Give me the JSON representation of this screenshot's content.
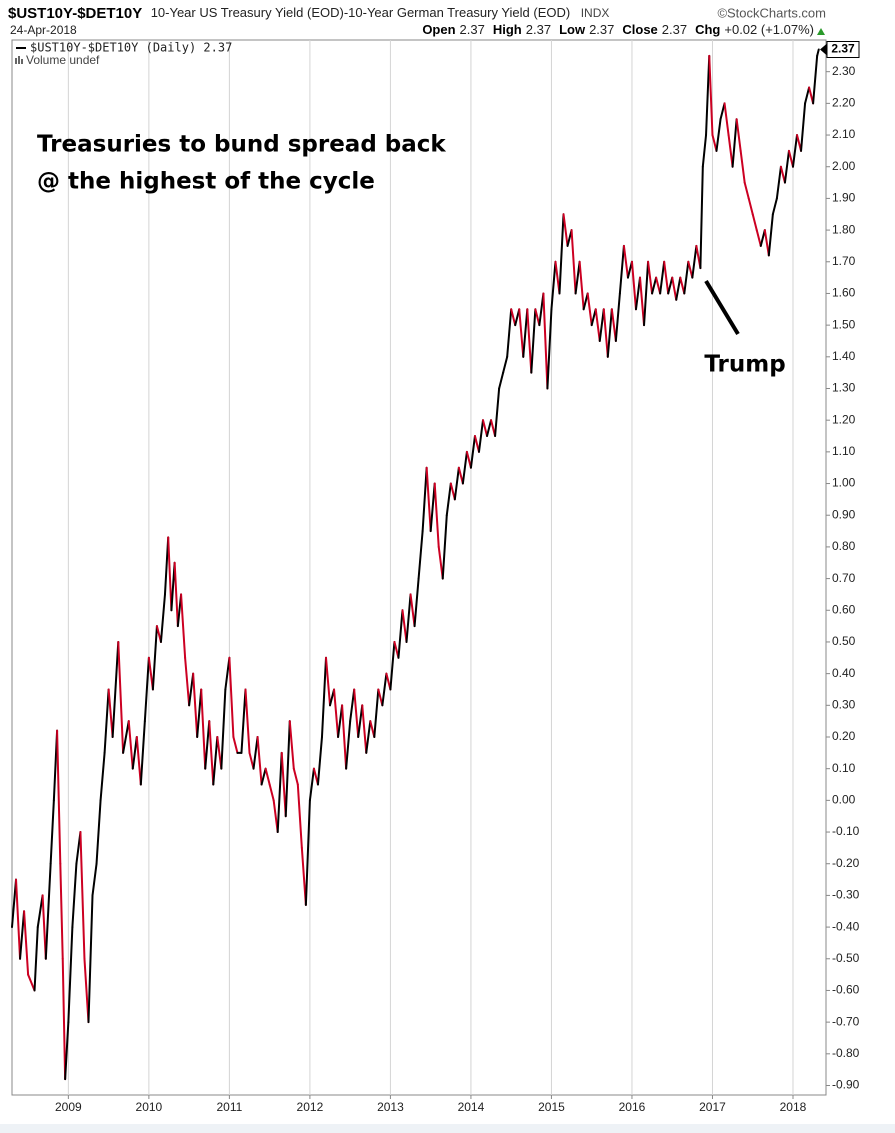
{
  "chart_data": {
    "type": "line",
    "symbol": "$UST10Y-$DET10Y",
    "title": "10-Year US Treasury Yield (EOD)-10-Year German Treasury Yield (EOD)",
    "exchange": "INDX",
    "source": "©StockCharts.com",
    "date": "24-Apr-2018",
    "quote": [
      {
        "label": "Open",
        "value": "2.37"
      },
      {
        "label": "High",
        "value": "2.37"
      },
      {
        "label": "Low",
        "value": "2.37"
      },
      {
        "label": "Close",
        "value": "2.37"
      },
      {
        "label": "Chg",
        "value": "+0.02 (+1.07%)"
      }
    ],
    "legend": [
      "$UST10Y-$DET10Y (Daily) 2.37",
      "Volume undef"
    ],
    "last_label": "2.37",
    "annotations": [
      "Treasuries to bund spread back",
      "@ the highest of the cycle",
      "Trump"
    ],
    "up_color": "#000000",
    "down_color": "#cc0022",
    "grid": "x",
    "y_axis_side": "right",
    "xlim": [
      2008.3,
      2018.41
    ],
    "ylim": [
      -0.93,
      2.4
    ],
    "xticks": [
      2009,
      2010,
      2011,
      2012,
      2013,
      2014,
      2015,
      2016,
      2017,
      2018
    ],
    "yticks": [
      {
        "value": 2.3,
        "label": "2.30"
      },
      {
        "value": 2.2,
        "label": "2.20"
      },
      {
        "value": 2.1,
        "label": "2.10"
      },
      {
        "value": 2.0,
        "label": "2.00"
      },
      {
        "value": 1.9,
        "label": "1.90"
      },
      {
        "value": 1.8,
        "label": "1.80"
      },
      {
        "value": 1.7,
        "label": "1.70"
      },
      {
        "value": 1.6,
        "label": "1.60"
      },
      {
        "value": 1.5,
        "label": "1.50"
      },
      {
        "value": 1.4,
        "label": "1.40"
      },
      {
        "value": 1.3,
        "label": "1.30"
      },
      {
        "value": 1.2,
        "label": "1.20"
      },
      {
        "value": 1.1,
        "label": "1.10"
      },
      {
        "value": 1.0,
        "label": "1.00"
      },
      {
        "value": 0.9,
        "label": "0.90"
      },
      {
        "value": 0.8,
        "label": "0.80"
      },
      {
        "value": 0.7,
        "label": "0.70"
      },
      {
        "value": 0.6,
        "label": "0.60"
      },
      {
        "value": 0.5,
        "label": "0.50"
      },
      {
        "value": 0.4,
        "label": "0.40"
      },
      {
        "value": 0.3,
        "label": "0.30"
      },
      {
        "value": 0.2,
        "label": "0.20"
      },
      {
        "value": 0.1,
        "label": "0.10"
      },
      {
        "value": 0.0,
        "label": "0.00"
      },
      {
        "value": -0.1,
        "label": "-0.10"
      },
      {
        "value": -0.2,
        "label": "-0.20"
      },
      {
        "value": -0.3,
        "label": "-0.30"
      },
      {
        "value": -0.4,
        "label": "-0.40"
      },
      {
        "value": -0.5,
        "label": "-0.50"
      },
      {
        "value": -0.6,
        "label": "-0.60"
      },
      {
        "value": -0.7,
        "label": "-0.70"
      },
      {
        "value": -0.8,
        "label": "-0.80"
      },
      {
        "value": -0.9,
        "label": "-0.90"
      }
    ],
    "x": [
      2008.3,
      2008.35,
      2008.4,
      2008.45,
      2008.5,
      2008.58,
      2008.62,
      2008.68,
      2008.72,
      2008.78,
      2008.82,
      2008.86,
      2008.9,
      2008.93,
      2008.96,
      2009.0,
      2009.05,
      2009.1,
      2009.15,
      2009.2,
      2009.25,
      2009.3,
      2009.35,
      2009.4,
      2009.45,
      2009.5,
      2009.55,
      2009.62,
      2009.68,
      2009.75,
      2009.8,
      2009.85,
      2009.9,
      2009.95,
      2010.0,
      2010.05,
      2010.1,
      2010.15,
      2010.2,
      2010.24,
      2010.28,
      2010.32,
      2010.36,
      2010.4,
      2010.45,
      2010.5,
      2010.55,
      2010.6,
      2010.65,
      2010.7,
      2010.75,
      2010.8,
      2010.85,
      2010.9,
      2010.95,
      2011.0,
      2011.05,
      2011.1,
      2011.15,
      2011.2,
      2011.25,
      2011.3,
      2011.35,
      2011.4,
      2011.45,
      2011.5,
      2011.55,
      2011.6,
      2011.65,
      2011.7,
      2011.75,
      2011.8,
      2011.85,
      2011.9,
      2011.95,
      2012.0,
      2012.05,
      2012.1,
      2012.15,
      2012.2,
      2012.25,
      2012.3,
      2012.35,
      2012.4,
      2012.45,
      2012.5,
      2012.55,
      2012.6,
      2012.65,
      2012.7,
      2012.75,
      2012.8,
      2012.85,
      2012.9,
      2012.95,
      2013.0,
      2013.05,
      2013.1,
      2013.15,
      2013.2,
      2013.25,
      2013.3,
      2013.35,
      2013.4,
      2013.45,
      2013.5,
      2013.55,
      2013.6,
      2013.65,
      2013.7,
      2013.75,
      2013.8,
      2013.85,
      2013.9,
      2013.95,
      2014.0,
      2014.05,
      2014.1,
      2014.15,
      2014.2,
      2014.25,
      2014.3,
      2014.35,
      2014.4,
      2014.45,
      2014.5,
      2014.55,
      2014.6,
      2014.65,
      2014.7,
      2014.75,
      2014.8,
      2014.85,
      2014.9,
      2014.95,
      2015.0,
      2015.05,
      2015.1,
      2015.15,
      2015.2,
      2015.25,
      2015.3,
      2015.35,
      2015.4,
      2015.45,
      2015.5,
      2015.55,
      2015.6,
      2015.65,
      2015.7,
      2015.75,
      2015.8,
      2015.85,
      2015.9,
      2015.95,
      2016.0,
      2016.05,
      2016.1,
      2016.15,
      2016.2,
      2016.25,
      2016.3,
      2016.35,
      2016.4,
      2016.45,
      2016.5,
      2016.55,
      2016.6,
      2016.65,
      2016.7,
      2016.75,
      2016.8,
      2016.85,
      2016.88,
      2016.92,
      2016.96,
      2017.0,
      2017.05,
      2017.1,
      2017.15,
      2017.2,
      2017.25,
      2017.3,
      2017.35,
      2017.4,
      2017.45,
      2017.5,
      2017.55,
      2017.6,
      2017.65,
      2017.7,
      2017.75,
      2017.8,
      2017.85,
      2017.9,
      2017.95,
      2018.0,
      2018.05,
      2018.1,
      2018.15,
      2018.2,
      2018.25,
      2018.3,
      2018.32
    ],
    "series": [
      {
        "name": "$UST10Y-$DET10Y",
        "values": [
          -0.4,
          -0.25,
          -0.5,
          -0.35,
          -0.55,
          -0.6,
          -0.4,
          -0.3,
          -0.5,
          -0.2,
          0.0,
          0.22,
          -0.2,
          -0.5,
          -0.88,
          -0.7,
          -0.4,
          -0.2,
          -0.1,
          -0.5,
          -0.7,
          -0.3,
          -0.2,
          0.0,
          0.15,
          0.35,
          0.2,
          0.5,
          0.15,
          0.25,
          0.1,
          0.2,
          0.05,
          0.25,
          0.45,
          0.35,
          0.55,
          0.5,
          0.65,
          0.83,
          0.6,
          0.75,
          0.55,
          0.65,
          0.45,
          0.3,
          0.4,
          0.2,
          0.35,
          0.1,
          0.25,
          0.05,
          0.2,
          0.1,
          0.35,
          0.45,
          0.2,
          0.15,
          0.15,
          0.35,
          0.15,
          0.1,
          0.2,
          0.05,
          0.1,
          0.05,
          0.0,
          -0.1,
          0.15,
          -0.05,
          0.25,
          0.1,
          0.05,
          -0.15,
          -0.33,
          0.0,
          0.1,
          0.05,
          0.2,
          0.45,
          0.3,
          0.35,
          0.2,
          0.3,
          0.1,
          0.25,
          0.35,
          0.2,
          0.3,
          0.15,
          0.25,
          0.2,
          0.35,
          0.3,
          0.4,
          0.35,
          0.5,
          0.45,
          0.6,
          0.5,
          0.65,
          0.55,
          0.7,
          0.85,
          1.05,
          0.85,
          1.0,
          0.8,
          0.7,
          0.9,
          1.0,
          0.95,
          1.05,
          1.0,
          1.1,
          1.05,
          1.15,
          1.1,
          1.2,
          1.15,
          1.2,
          1.15,
          1.3,
          1.35,
          1.4,
          1.55,
          1.5,
          1.55,
          1.4,
          1.55,
          1.35,
          1.55,
          1.5,
          1.6,
          1.3,
          1.55,
          1.7,
          1.6,
          1.85,
          1.75,
          1.8,
          1.6,
          1.7,
          1.55,
          1.6,
          1.5,
          1.55,
          1.45,
          1.55,
          1.4,
          1.55,
          1.45,
          1.6,
          1.75,
          1.65,
          1.7,
          1.55,
          1.65,
          1.5,
          1.7,
          1.6,
          1.65,
          1.6,
          1.7,
          1.6,
          1.65,
          1.58,
          1.65,
          1.6,
          1.7,
          1.65,
          1.75,
          1.68,
          2.0,
          2.1,
          2.35,
          2.1,
          2.05,
          2.15,
          2.2,
          2.1,
          2.0,
          2.15,
          2.05,
          1.95,
          1.9,
          1.85,
          1.8,
          1.75,
          1.8,
          1.72,
          1.85,
          1.9,
          2.0,
          1.95,
          2.05,
          2.0,
          2.1,
          2.05,
          2.2,
          2.25,
          2.2,
          2.35,
          2.37
        ]
      }
    ]
  }
}
